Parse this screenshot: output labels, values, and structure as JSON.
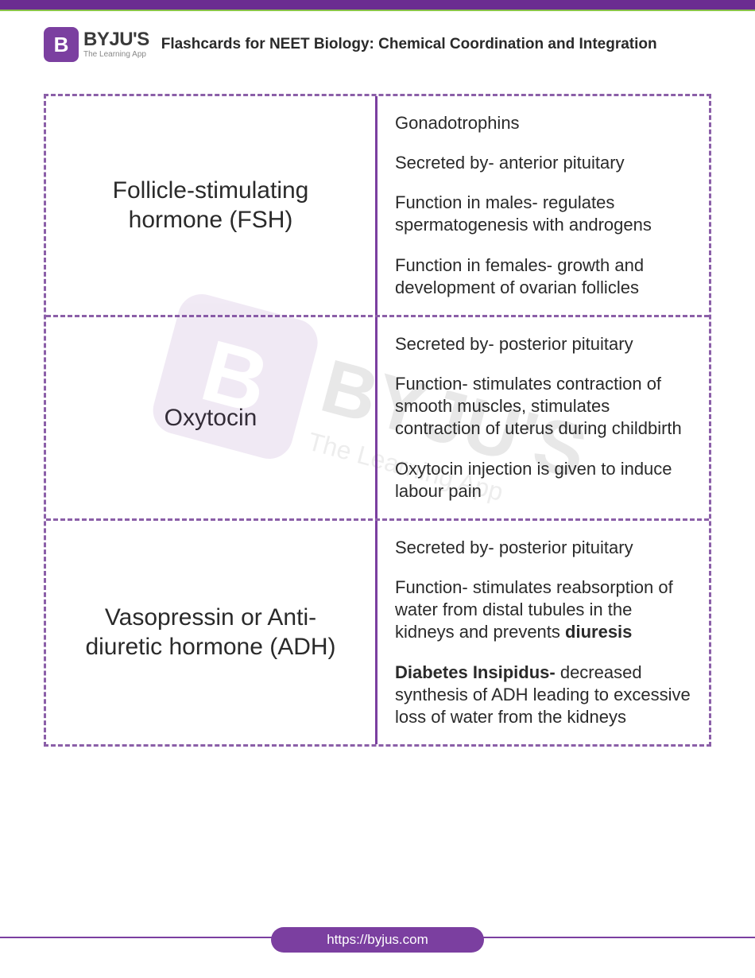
{
  "brand": {
    "badge_letter": "B",
    "name": "BYJU'S",
    "tagline": "The Learning App"
  },
  "page_title": "Flashcards for NEET Biology: Chemical Coordination and Integration",
  "footer_url": "https://byjus.com",
  "colors": {
    "primary": "#7b3fa0",
    "dash": "#8b5fa8",
    "accent": "#8bc34a",
    "text": "#2a2a2a"
  },
  "cards": [
    {
      "title": "Follicle-stimulating hormone (FSH)",
      "details": [
        {
          "text": "Gonadotrophins"
        },
        {
          "text": "Secreted by- anterior pituitary"
        },
        {
          "text": "Function in males- regulates spermatogenesis with androgens"
        },
        {
          "text": "Function in females- growth and development of ovarian follicles"
        }
      ]
    },
    {
      "title": "Oxytocin",
      "details": [
        {
          "text": "Secreted by- posterior pituitary"
        },
        {
          "text": "Function- stimulates contraction of smooth muscles, stimulates contraction of uterus during childbirth"
        },
        {
          "text": "Oxytocin injection is given to induce labour pain"
        }
      ]
    },
    {
      "title": "Vasopressin or Anti-diuretic hormone (ADH)",
      "details": [
        {
          "text": "Secreted by- posterior pituitary"
        },
        {
          "prefix": "Function- stimulates reabsorption of water from distal tubules in the kidneys and prevents ",
          "bold": "diuresis"
        },
        {
          "bold": "Diabetes Insipidus- ",
          "suffix": "decreased synthesis of ADH leading to excessive loss of water from the kidneys"
        }
      ]
    }
  ]
}
